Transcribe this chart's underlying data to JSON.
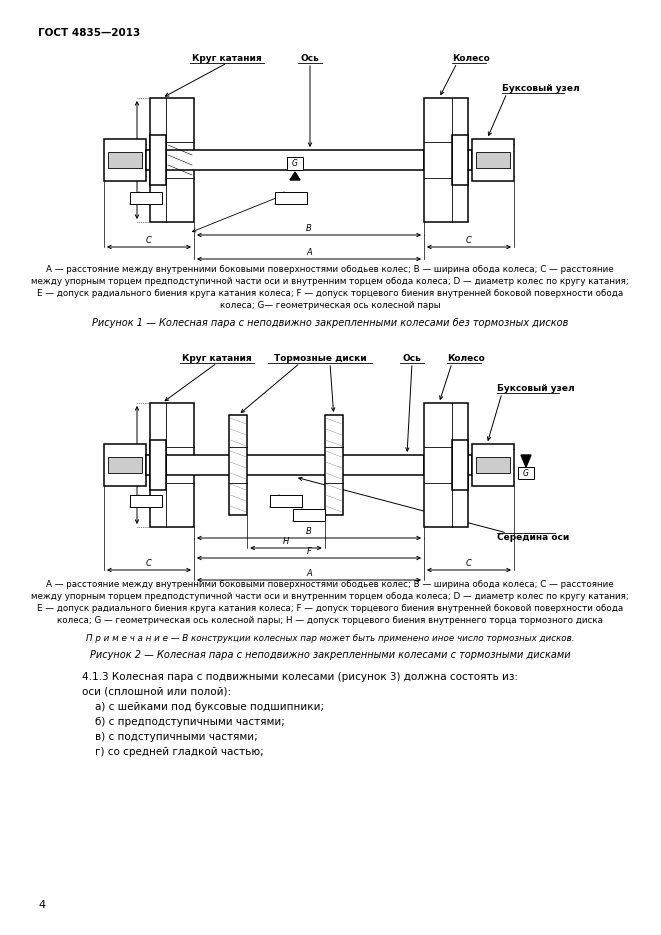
{
  "page_title": "ГОСТ 4835—2013",
  "page_number": "4",
  "fig1_label_krug": "Круг катания",
  "fig1_label_os": "Ось",
  "fig1_label_koleso": "Колесо",
  "fig1_label_buk": "Буксовый узел",
  "fig1_caption_line1": "А — расстояние между внутренними боковыми поверхностями ободьев колес; В — ширина обода колеса; С — расстояние",
  "fig1_caption_line2": "между упорным торцем предподступичной части оси и внутренним торцем обода колеса; D — диаметр колес по кругу катания;",
  "fig1_caption_line3": "Е — допуск радиального биения круга катания колеса; F — допуск торцевого биения внутренней боковой поверхности обода",
  "fig1_caption_line4": "колеса; G— геометрическая ось колесной пары",
  "fig1_title": "Рисунок 1 — Колесная пара с неподвижно закрепленными колесами без тормозных дисков",
  "fig2_label_krug": "Круг катания",
  "fig2_label_torm": "Тормозные диски",
  "fig2_label_os": "Ось",
  "fig2_label_koleso": "Колесо",
  "fig2_label_buk": "Буксовый узел",
  "fig2_label_ser": "Середина оси",
  "fig2_caption_line1": "А — расстояние между внутренними боковыми поверхностями ободьев колес; В — ширина обода колеса; С — расстояние",
  "fig2_caption_line2": "между упорным торцем предподступичной части оси и внутренним торцем обода колеса; D — диаметр колес по кругу катания;",
  "fig2_caption_line3": "Е — допуск радиального биения круга катания колеса; F — допуск торцевого биения внутренней боковой поверхности обода",
  "fig2_caption_line4": "колеса; G — геометрическая ось колесной пары; H — допуск торцевого биения внутреннего торца тормозного диска",
  "fig2_note": "П р и м е ч а н и е — В конструкции колесных пар может быть применено иное число тормозных дисков.",
  "fig2_title": "Рисунок 2 — Колесная пара с неподвижно закрепленными колесами с тормозными дисками",
  "sec413_line1": "4.1.3 Колесная пара с подвижными колесами (рисунок 3) должна состоять из:",
  "sec413_line2": "оси (сплошной или полой):",
  "sec413_line3": "а) с шейками под буксовые подшипники;",
  "sec413_line4": "б) с предподступичными частями;",
  "sec413_line5": "в) с подступичными частями;",
  "sec413_line6": "г) со средней гладкой частью;"
}
